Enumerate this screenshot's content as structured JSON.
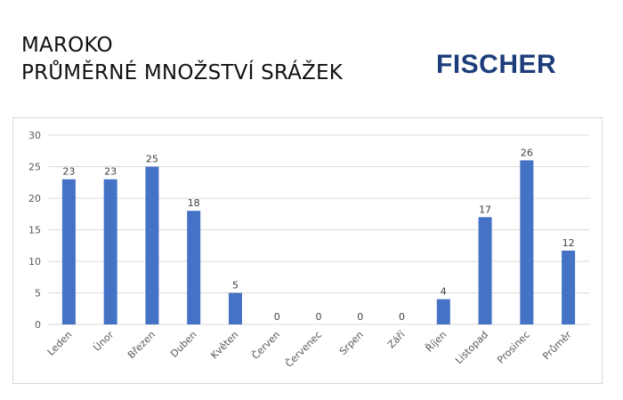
{
  "header": {
    "title_line1": "MAROKO",
    "title_line2": "PRŮMĚRNÉ MNOŽSTVÍ SRÁŽEK",
    "logo_text": "FISCHER"
  },
  "colors": {
    "bar": "#4472c4",
    "logo": "#1d3e7b",
    "grid": "#d9d9d9"
  },
  "chart_data": {
    "type": "bar",
    "title": "MAROKO PRŮMĚRNÉ MNOŽSTVÍ SRÁŽEK",
    "categories": [
      "Leden",
      "Únor",
      "Březen",
      "Duben",
      "Květen",
      "Červen",
      "Červenec",
      "Srpen",
      "Září",
      "Říjen",
      "Listopad",
      "Prosinec",
      "Průměr"
    ],
    "values": [
      23,
      23,
      25,
      18,
      5,
      0,
      0,
      0,
      0,
      4,
      17,
      26,
      11.7
    ],
    "data_labels": [
      "23",
      "23",
      "25",
      "18",
      "5",
      "0",
      "0",
      "0",
      "0",
      "4",
      "17",
      "26",
      "12"
    ],
    "ylim": [
      0,
      30
    ],
    "yticks": [
      0,
      5,
      10,
      15,
      20,
      25,
      30
    ],
    "grid": true,
    "legend": "none",
    "xlabel": "",
    "ylabel": ""
  }
}
